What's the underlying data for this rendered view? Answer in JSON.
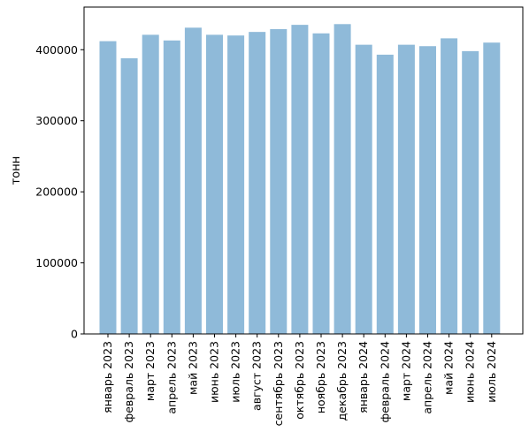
{
  "chart_data": {
    "type": "bar",
    "title": "",
    "xlabel": "",
    "ylabel": "тонн",
    "categories": [
      "январь 2023",
      "февраль 2023",
      "март 2023",
      "апрель 2023",
      "май 2023",
      "июнь 2023",
      "июль 2023",
      "август 2023",
      "сентябрь 2023",
      "октябрь 2023",
      "ноябрь 2023",
      "декабрь 2023",
      "январь 2024",
      "февраль 2024",
      "март 2024",
      "апрель 2024",
      "май 2024",
      "июнь 2024",
      "июль 2024"
    ],
    "values": [
      412000,
      388000,
      421000,
      413000,
      431000,
      421000,
      420000,
      425000,
      429000,
      435000,
      423000,
      436000,
      407000,
      393000,
      407000,
      405000,
      416000,
      398000,
      410000
    ],
    "ylim": [
      0,
      460000
    ],
    "yticks": [
      "0",
      "100000",
      "200000",
      "300000",
      "400000"
    ],
    "ytick_values": [
      0,
      100000,
      200000,
      300000,
      400000
    ],
    "grid": false,
    "bar_color": "#8fbad9"
  }
}
